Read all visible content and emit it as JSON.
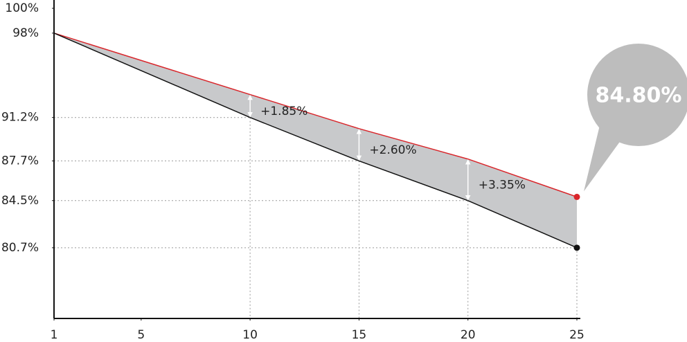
{
  "chart_data": {
    "type": "line",
    "x": [
      1,
      10,
      15,
      20,
      25
    ],
    "series": [
      {
        "color": "#d9262b",
        "values": [
          98,
          93.05,
          90.3,
          87.85,
          84.8
        ]
      },
      {
        "color": "#111111",
        "values": [
          98,
          91.2,
          87.7,
          84.5,
          80.7
        ]
      }
    ],
    "fill_between": "#c8c9cb",
    "xlim": [
      1,
      25
    ],
    "xticks": [
      1,
      5,
      10,
      15,
      20,
      25
    ],
    "ylim": [
      75,
      100
    ],
    "yticks": [
      {
        "value": 100,
        "label": "100%"
      },
      {
        "value": 98,
        "label": "98%"
      },
      {
        "value": 91.2,
        "label": "91.2%"
      },
      {
        "value": 87.7,
        "label": "87.7%"
      },
      {
        "value": 84.5,
        "label": "84.5%"
      },
      {
        "value": 80.7,
        "label": "80.7%"
      }
    ],
    "annotations": [
      {
        "x": 10,
        "label": "+1.85%"
      },
      {
        "x": 15,
        "label": "+2.60%"
      },
      {
        "x": 20,
        "label": "+3.35%"
      }
    ],
    "callout": {
      "label": "84.80%"
    }
  }
}
